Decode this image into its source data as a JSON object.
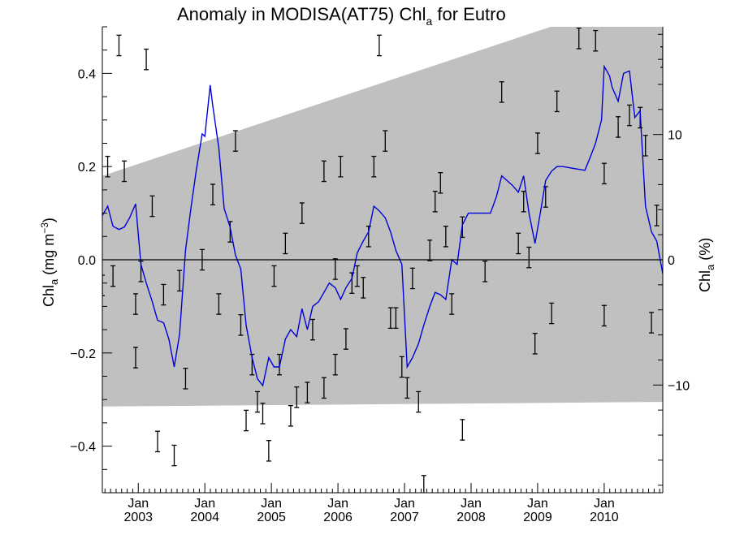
{
  "chart_data": {
    "type": "line",
    "title_main": "Anomaly in MODISA(AT75) Chl",
    "title_sub": "a",
    "title_rest": " for Eutro",
    "ylabel": {
      "main": "Chl",
      "sub": "a",
      "rest": " (mg m",
      "sup": "−3",
      "end": ")"
    },
    "y2label": {
      "main": "Chl",
      "sub": "a",
      "rest": " (%)"
    },
    "x_ticks": [
      {
        "month": "Jan",
        "year": "2003",
        "t": 2003.0
      },
      {
        "month": "Jan",
        "year": "2004",
        "t": 2004.0
      },
      {
        "month": "Jan",
        "year": "2005",
        "t": 2005.0
      },
      {
        "month": "Jan",
        "year": "2006",
        "t": 2006.0
      },
      {
        "month": "Jan",
        "year": "2007",
        "t": 2007.0
      },
      {
        "month": "Jan",
        "year": "2008",
        "t": 2008.0
      },
      {
        "month": "Jan",
        "year": "2009",
        "t": 2009.0
      },
      {
        "month": "Jan",
        "year": "2010",
        "t": 2010.0
      }
    ],
    "xlim": [
      2002.46,
      2010.88
    ],
    "ylim": [
      -0.5,
      0.5
    ],
    "y_ticks": [
      {
        "v": -0.4,
        "label": "−0.4"
      },
      {
        "v": -0.2,
        "label": "−0.2"
      },
      {
        "v": 0.0,
        "label": "0.0"
      },
      {
        "v": 0.2,
        "label": "0.2"
      },
      {
        "v": 0.4,
        "label": "0.4"
      }
    ],
    "y2_ticks": [
      {
        "v": -10,
        "label": "−10"
      },
      {
        "v": 0,
        "label": "0"
      },
      {
        "v": 10,
        "label": "10"
      }
    ],
    "y2lim": [
      -18.6,
      18.6
    ],
    "colors": {
      "band": "#c0c0c0",
      "line": "#0000dd",
      "errorbar": "#000000",
      "zero": "#000000"
    },
    "band": {
      "t_start": 2002.46,
      "t_end": 2010.88,
      "upper_start": 0.18,
      "upper_end": 0.58,
      "lower_start": -0.315,
      "lower_end": -0.305
    },
    "series": [
      {
        "values": [
          [
            2002.46,
            0.095
          ],
          [
            2002.54,
            0.115
          ],
          [
            2002.62,
            0.072
          ],
          [
            2002.71,
            0.065
          ],
          [
            2002.79,
            0.07
          ],
          [
            2002.87,
            0.09
          ],
          [
            2002.96,
            0.12
          ],
          [
            2003.04,
            -0.01
          ],
          [
            2003.12,
            -0.05
          ],
          [
            2003.21,
            -0.09
          ],
          [
            2003.29,
            -0.13
          ],
          [
            2003.38,
            -0.135
          ],
          [
            2003.46,
            -0.17
          ],
          [
            2003.54,
            -0.23
          ],
          [
            2003.62,
            -0.16
          ],
          [
            2003.71,
            0.02
          ],
          [
            2003.79,
            0.11
          ],
          [
            2003.87,
            0.19
          ],
          [
            2003.96,
            0.27
          ],
          [
            2004.0,
            0.265
          ],
          [
            2004.08,
            0.375
          ],
          [
            2004.12,
            0.33
          ],
          [
            2004.21,
            0.24
          ],
          [
            2004.29,
            0.11
          ],
          [
            2004.38,
            0.07
          ],
          [
            2004.46,
            0.01
          ],
          [
            2004.54,
            -0.02
          ],
          [
            2004.62,
            -0.14
          ],
          [
            2004.71,
            -0.21
          ],
          [
            2004.79,
            -0.255
          ],
          [
            2004.87,
            -0.27
          ],
          [
            2004.96,
            -0.21
          ],
          [
            2005.04,
            -0.23
          ],
          [
            2005.12,
            -0.23
          ],
          [
            2005.21,
            -0.17
          ],
          [
            2005.29,
            -0.15
          ],
          [
            2005.38,
            -0.165
          ],
          [
            2005.46,
            -0.105
          ],
          [
            2005.54,
            -0.15
          ],
          [
            2005.62,
            -0.1
          ],
          [
            2005.71,
            -0.09
          ],
          [
            2005.79,
            -0.07
          ],
          [
            2005.87,
            -0.05
          ],
          [
            2005.96,
            -0.06
          ],
          [
            2006.04,
            -0.085
          ],
          [
            2006.12,
            -0.06
          ],
          [
            2006.21,
            -0.04
          ],
          [
            2006.29,
            0.015
          ],
          [
            2006.38,
            0.04
          ],
          [
            2006.46,
            0.06
          ],
          [
            2006.54,
            0.115
          ],
          [
            2006.62,
            0.105
          ],
          [
            2006.71,
            0.09
          ],
          [
            2006.79,
            0.06
          ],
          [
            2006.87,
            0.02
          ],
          [
            2006.96,
            -0.01
          ],
          [
            2007.04,
            -0.23
          ],
          [
            2007.12,
            -0.21
          ],
          [
            2007.21,
            -0.18
          ],
          [
            2007.29,
            -0.14
          ],
          [
            2007.38,
            -0.1
          ],
          [
            2007.46,
            -0.07
          ],
          [
            2007.54,
            -0.075
          ],
          [
            2007.62,
            -0.085
          ],
          [
            2007.71,
            0.0
          ],
          [
            2007.79,
            -0.01
          ],
          [
            2007.87,
            0.075
          ],
          [
            2007.96,
            0.1
          ],
          [
            2008.04,
            0.1
          ],
          [
            2008.12,
            0.1
          ],
          [
            2008.21,
            0.1
          ],
          [
            2008.29,
            0.1
          ],
          [
            2008.38,
            0.135
          ],
          [
            2008.46,
            0.18
          ],
          [
            2008.54,
            0.17
          ],
          [
            2008.62,
            0.16
          ],
          [
            2008.71,
            0.145
          ],
          [
            2008.79,
            0.18
          ],
          [
            2008.87,
            0.1
          ],
          [
            2008.96,
            0.035
          ],
          [
            2009.04,
            0.1
          ],
          [
            2009.12,
            0.17
          ],
          [
            2009.21,
            0.19
          ],
          [
            2009.29,
            0.2
          ],
          [
            2009.38,
            0.2
          ],
          [
            2009.46,
            0.198
          ],
          [
            2009.54,
            0.196
          ],
          [
            2009.62,
            0.194
          ],
          [
            2009.71,
            0.192
          ],
          [
            2009.79,
            0.22
          ],
          [
            2009.87,
            0.25
          ],
          [
            2009.96,
            0.3
          ],
          [
            2010.0,
            0.415
          ],
          [
            2010.08,
            0.395
          ],
          [
            2010.12,
            0.37
          ],
          [
            2010.21,
            0.34
          ],
          [
            2010.29,
            0.4
          ],
          [
            2010.38,
            0.405
          ],
          [
            2010.46,
            0.305
          ],
          [
            2010.54,
            0.32
          ],
          [
            2010.62,
            0.115
          ],
          [
            2010.71,
            0.06
          ],
          [
            2010.79,
            0.04
          ],
          [
            2010.88,
            -0.03
          ]
        ]
      }
    ],
    "points": [
      [
        2002.46,
        -0.055
      ],
      [
        2002.54,
        0.2
      ],
      [
        2002.62,
        -0.035
      ],
      [
        2002.71,
        0.46
      ],
      [
        2002.79,
        0.19
      ],
      [
        2002.96,
        -0.21
      ],
      [
        2002.96,
        -0.095
      ],
      [
        2003.04,
        -0.025
      ],
      [
        2003.12,
        0.43
      ],
      [
        2003.21,
        0.115
      ],
      [
        2003.29,
        -0.39
      ],
      [
        2003.38,
        -0.075
      ],
      [
        2003.54,
        -0.42
      ],
      [
        2003.62,
        -0.045
      ],
      [
        2003.71,
        -0.255
      ],
      [
        2003.96,
        0.0
      ],
      [
        2004.12,
        0.14
      ],
      [
        2004.21,
        -0.095
      ],
      [
        2004.38,
        0.06
      ],
      [
        2004.46,
        0.255
      ],
      [
        2004.54,
        -0.14
      ],
      [
        2004.62,
        -0.345
      ],
      [
        2004.71,
        -0.225
      ],
      [
        2004.79,
        -0.305
      ],
      [
        2004.87,
        -0.33
      ],
      [
        2004.96,
        -0.41
      ],
      [
        2005.04,
        -0.035
      ],
      [
        2005.12,
        -0.225
      ],
      [
        2005.21,
        0.035
      ],
      [
        2005.29,
        -0.335
      ],
      [
        2005.38,
        -0.295
      ],
      [
        2005.46,
        0.1
      ],
      [
        2005.54,
        -0.285
      ],
      [
        2005.62,
        -0.15
      ],
      [
        2005.79,
        0.19
      ],
      [
        2005.79,
        -0.275
      ],
      [
        2005.96,
        -0.02
      ],
      [
        2005.96,
        -0.225
      ],
      [
        2006.04,
        0.2
      ],
      [
        2006.12,
        -0.17
      ],
      [
        2006.21,
        -0.05
      ],
      [
        2006.29,
        -0.035
      ],
      [
        2006.38,
        -0.06
      ],
      [
        2006.46,
        0.05
      ],
      [
        2006.54,
        0.2
      ],
      [
        2006.62,
        0.46
      ],
      [
        2006.71,
        0.255
      ],
      [
        2006.79,
        -0.125
      ],
      [
        2006.87,
        -0.125
      ],
      [
        2006.96,
        -0.23
      ],
      [
        2007.04,
        -0.275
      ],
      [
        2007.12,
        -0.04
      ],
      [
        2007.21,
        -0.305
      ],
      [
        2007.29,
        -0.485
      ],
      [
        2007.38,
        0.02
      ],
      [
        2007.46,
        0.125
      ],
      [
        2007.54,
        0.165
      ],
      [
        2007.62,
        0.05
      ],
      [
        2007.71,
        -0.095
      ],
      [
        2007.87,
        -0.365
      ],
      [
        2007.87,
        0.07
      ],
      [
        2008.21,
        -0.025
      ],
      [
        2008.46,
        0.36
      ],
      [
        2008.71,
        0.035
      ],
      [
        2008.79,
        0.125
      ],
      [
        2008.87,
        0.005
      ],
      [
        2008.96,
        -0.18
      ],
      [
        2009.0,
        0.25
      ],
      [
        2009.12,
        0.135
      ],
      [
        2009.21,
        -0.115
      ],
      [
        2009.29,
        0.34
      ],
      [
        2009.62,
        0.475
      ],
      [
        2009.87,
        0.47
      ],
      [
        2010.0,
        -0.12
      ],
      [
        2010.0,
        0.185
      ],
      [
        2010.21,
        0.285
      ],
      [
        2010.38,
        0.31
      ],
      [
        2010.54,
        0.305
      ],
      [
        2010.62,
        0.245
      ],
      [
        2010.71,
        -0.135
      ],
      [
        2010.79,
        0.095
      ],
      [
        2010.88,
        0.435
      ]
    ],
    "errorbar_half": 0.022
  }
}
